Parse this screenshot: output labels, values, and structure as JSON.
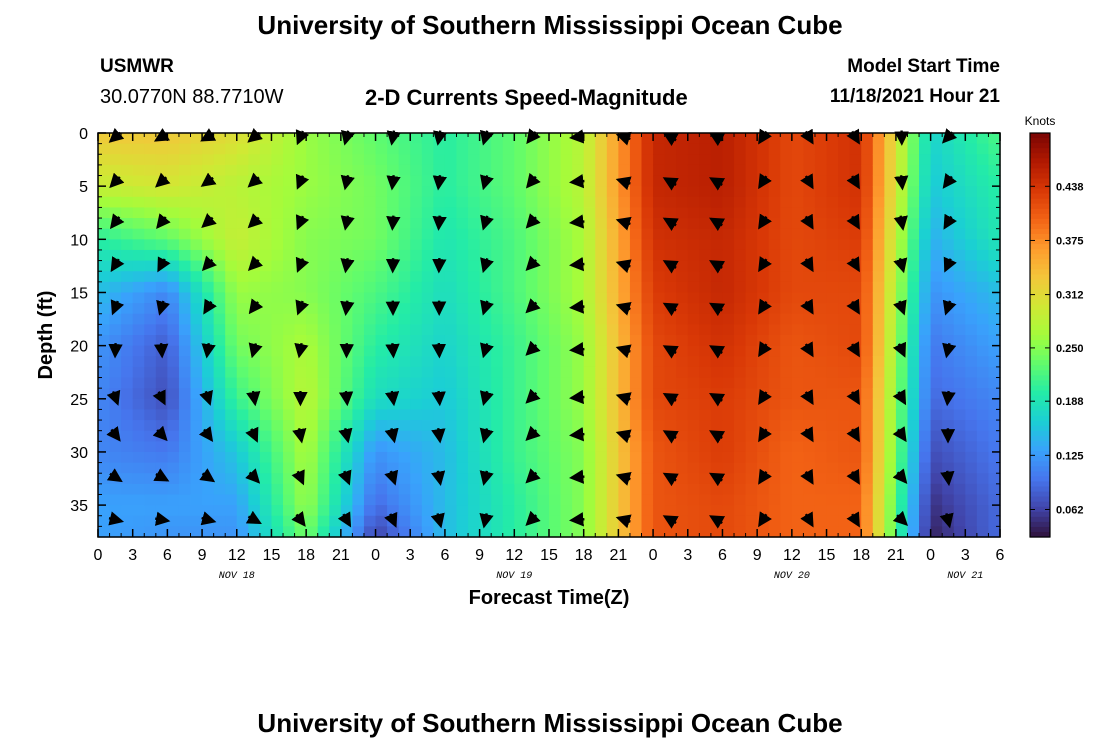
{
  "header": {
    "title": "University of Southern Mississippi Ocean Cube",
    "station": "USMWR",
    "coordinates": "30.0770N  88.7710W",
    "subtitle": "2-D Currents Speed-Magnitude",
    "model_start_label": "Model Start Time",
    "model_start_value": "11/18/2021 Hour 21"
  },
  "footer": {
    "title": "University of Southern Mississippi Ocean Cube"
  },
  "chart_data": {
    "type": "heatmap",
    "title": "2-D Currents Speed-Magnitude",
    "xlabel": "Forecast Time(Z)",
    "ylabel": "Depth (ft)",
    "x_tick_labels": [
      "0",
      "3",
      "6",
      "9",
      "12",
      "15",
      "18",
      "21",
      "0",
      "3",
      "6",
      "9",
      "12",
      "15",
      "18",
      "21",
      "0",
      "3",
      "6",
      "9",
      "12",
      "15",
      "18",
      "21",
      "0",
      "3",
      "6"
    ],
    "x_range_hours": [
      0,
      78
    ],
    "day_labels": [
      {
        "label": "NOV 18",
        "hour": 12
      },
      {
        "label": "NOV 19",
        "hour": 36
      },
      {
        "label": "NOV 20",
        "hour": 60
      },
      {
        "label": "NOV 21",
        "hour": 75
      }
    ],
    "y_ticks": [
      0,
      5,
      10,
      15,
      20,
      25,
      30,
      35
    ],
    "y_range_ft": [
      0,
      38
    ],
    "y_inverted": true,
    "colorbar": {
      "label": "Knots",
      "range": [
        0.03,
        0.5
      ],
      "ticks": [
        "0.062",
        "0.125",
        "0.188",
        "0.250",
        "0.312",
        "0.375",
        "0.438"
      ],
      "tick_values": [
        0.062,
        0.125,
        0.188,
        0.25,
        0.312,
        0.375,
        0.438
      ],
      "colors": [
        "#30123b",
        "#4145ab",
        "#4675ed",
        "#39a2fc",
        "#1bcfd4",
        "#24eca6",
        "#61fc6c",
        "#a4fc3b",
        "#d1e834",
        "#f3c63a",
        "#fe9b2d",
        "#f36315",
        "#d93806",
        "#b11901",
        "#7a0403"
      ]
    },
    "grid": false,
    "speed_knots": {
      "time_hours": [
        0,
        6,
        12,
        18,
        24,
        30,
        36,
        42,
        48,
        54,
        60,
        66,
        72,
        78
      ],
      "rows": [
        {
          "depth_ft": 0,
          "values": [
            0.33,
            0.33,
            0.31,
            0.26,
            0.23,
            0.2,
            0.23,
            0.28,
            0.45,
            0.46,
            0.42,
            0.44,
            0.17,
            0.22
          ]
        },
        {
          "depth_ft": 5,
          "values": [
            0.29,
            0.3,
            0.28,
            0.26,
            0.24,
            0.2,
            0.23,
            0.28,
            0.45,
            0.46,
            0.42,
            0.44,
            0.16,
            0.2
          ]
        },
        {
          "depth_ft": 10,
          "values": [
            0.2,
            0.23,
            0.29,
            0.25,
            0.24,
            0.19,
            0.22,
            0.27,
            0.44,
            0.45,
            0.42,
            0.43,
            0.14,
            0.19
          ]
        },
        {
          "depth_ft": 15,
          "values": [
            0.15,
            0.11,
            0.26,
            0.25,
            0.22,
            0.18,
            0.22,
            0.27,
            0.43,
            0.45,
            0.42,
            0.42,
            0.12,
            0.15
          ]
        },
        {
          "depth_ft": 20,
          "values": [
            0.12,
            0.08,
            0.24,
            0.27,
            0.2,
            0.17,
            0.21,
            0.26,
            0.42,
            0.44,
            0.41,
            0.42,
            0.1,
            0.13
          ]
        },
        {
          "depth_ft": 25,
          "values": [
            0.11,
            0.07,
            0.21,
            0.28,
            0.18,
            0.16,
            0.21,
            0.26,
            0.42,
            0.43,
            0.41,
            0.41,
            0.09,
            0.11
          ]
        },
        {
          "depth_ft": 30,
          "values": [
            0.11,
            0.1,
            0.16,
            0.27,
            0.12,
            0.15,
            0.21,
            0.25,
            0.41,
            0.43,
            0.4,
            0.41,
            0.07,
            0.1
          ]
        },
        {
          "depth_ft": 35,
          "values": [
            0.13,
            0.13,
            0.13,
            0.26,
            0.09,
            0.15,
            0.2,
            0.25,
            0.41,
            0.42,
            0.4,
            0.4,
            0.05,
            0.09
          ]
        },
        {
          "depth_ft": 38,
          "values": [
            0.13,
            0.12,
            0.12,
            0.24,
            0.06,
            0.15,
            0.2,
            0.25,
            0.41,
            0.42,
            0.4,
            0.4,
            0.04,
            0.09
          ]
        }
      ]
    },
    "current_direction_deg": {
      "time_hours": [
        0,
        6,
        12,
        18,
        24,
        30,
        36,
        42,
        48,
        54,
        60,
        66,
        72,
        78
      ],
      "rows": [
        {
          "depth_ft": 0,
          "values": [
            225,
            240,
            240,
            200,
            190,
            190,
            200,
            270,
            300,
            300,
            150,
            150,
            200,
            290
          ]
        },
        {
          "depth_ft": 15,
          "values": [
            210,
            200,
            230,
            200,
            180,
            180,
            210,
            270,
            300,
            300,
            150,
            150,
            170,
            290
          ]
        },
        {
          "depth_ft": 25,
          "values": [
            160,
            150,
            165,
            180,
            170,
            175,
            210,
            270,
            300,
            300,
            150,
            150,
            150,
            290
          ]
        },
        {
          "depth_ft": 38,
          "values": [
            95,
            90,
            100,
            140,
            150,
            165,
            210,
            270,
            300,
            300,
            150,
            150,
            120,
            290
          ]
        }
      ]
    }
  }
}
